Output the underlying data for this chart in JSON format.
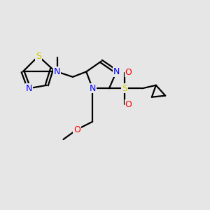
{
  "background_color": "#e6e6e6",
  "bond_color": "#000000",
  "N_color": "#0000ff",
  "S_color": "#cccc00",
  "O_color": "#ff0000",
  "figsize": [
    3.0,
    3.0
  ],
  "dpi": 100,
  "xlim": [
    0,
    10
  ],
  "ylim": [
    0,
    10
  ]
}
